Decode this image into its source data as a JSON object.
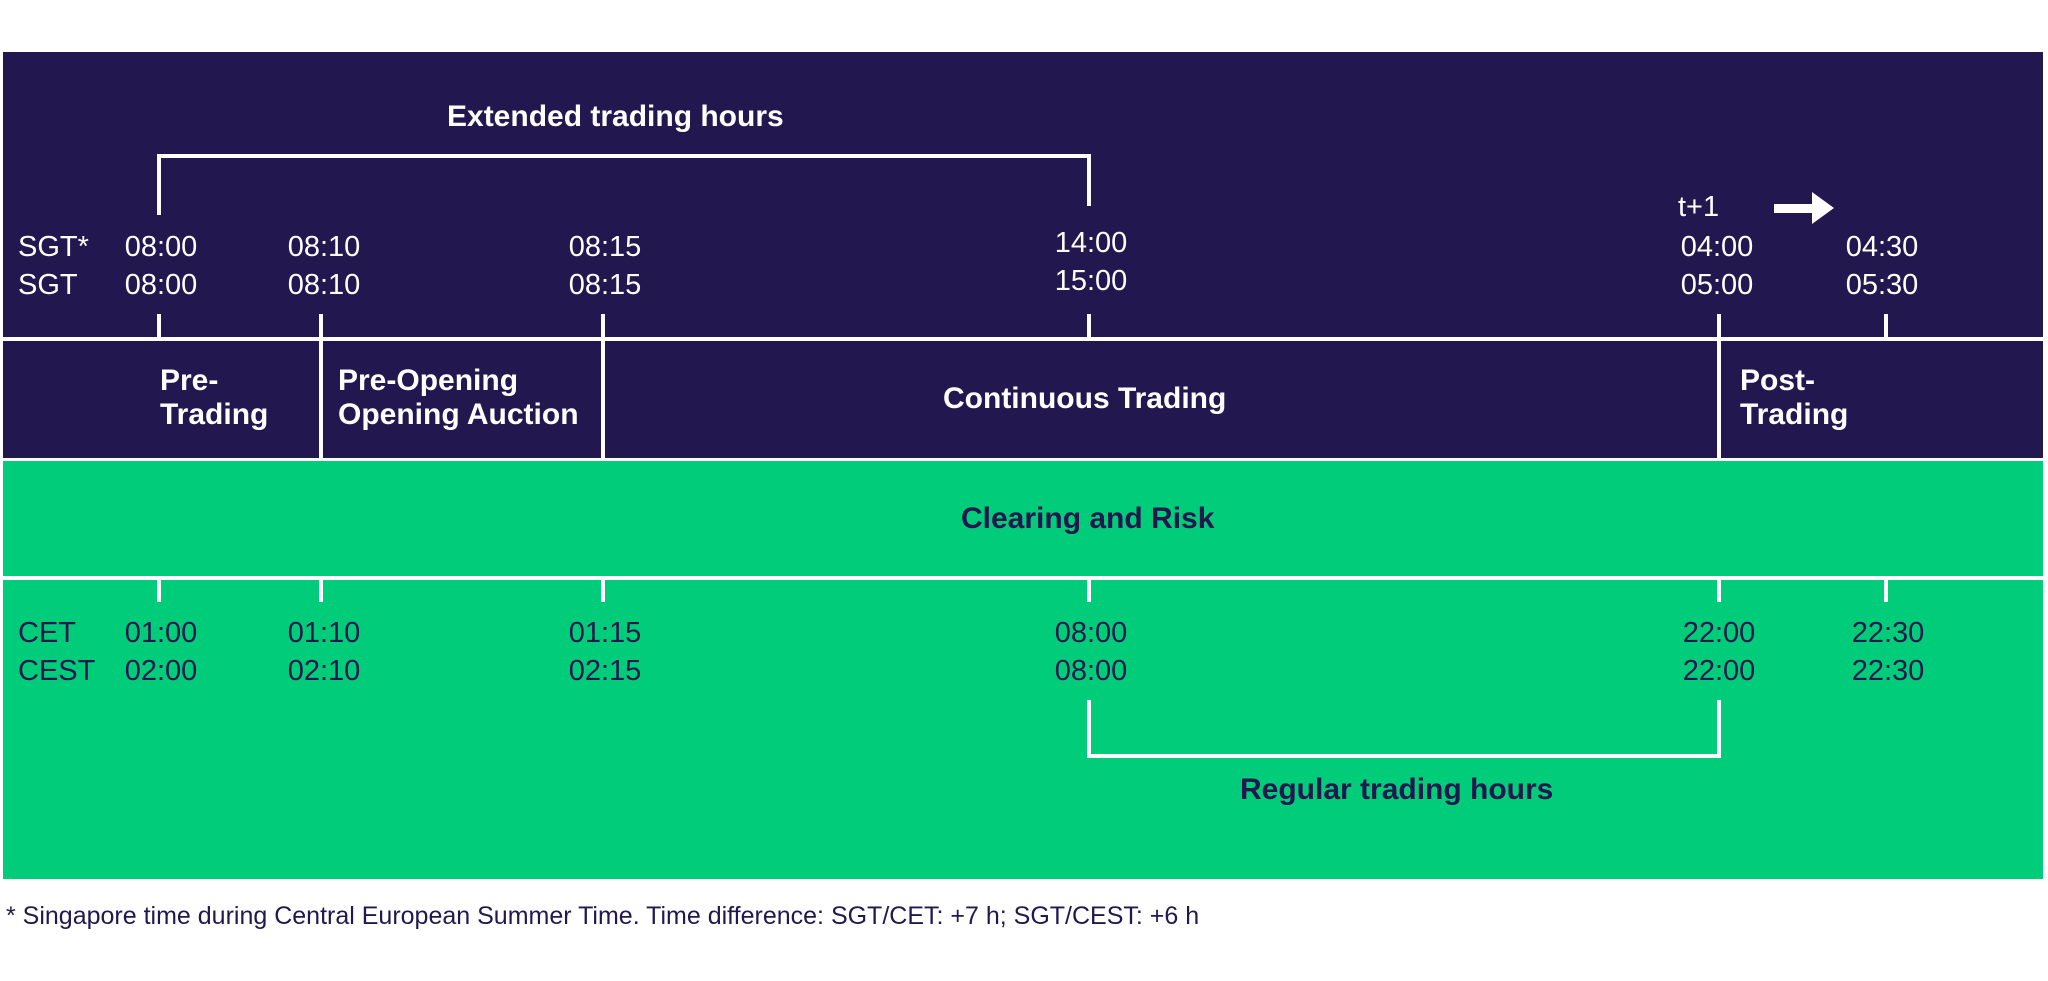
{
  "extended_hours_label": "Extended trading hours",
  "regular_hours_label": "Regular trading hours",
  "next_day_label": "t+1",
  "top_timezones": [
    "SGT*",
    "SGT"
  ],
  "bottom_timezones": [
    "CET",
    "CEST"
  ],
  "top_times": [
    {
      "a": "08:00",
      "b": "08:00"
    },
    {
      "a": "08:10",
      "b": "08:10"
    },
    {
      "a": "08:15",
      "b": "08:15"
    },
    {
      "a": "14:00",
      "b": "15:00"
    },
    {
      "a": "04:00",
      "b": "05:00"
    },
    {
      "a": "04:30",
      "b": "05:30"
    }
  ],
  "bottom_times": [
    {
      "a": "01:00",
      "b": "02:00"
    },
    {
      "a": "01:10",
      "b": "02:10"
    },
    {
      "a": "01:15",
      "b": "02:15"
    },
    {
      "a": "08:00",
      "b": "08:00"
    },
    {
      "a": "22:00",
      "b": "22:00"
    },
    {
      "a": "22:30",
      "b": "22:30"
    }
  ],
  "phases": {
    "pre_trading": [
      "Pre-",
      "Trading"
    ],
    "pre_opening": [
      "Pre-Opening",
      "Opening Auction"
    ],
    "continuous": "Continuous Trading",
    "post_trading": [
      "Post-",
      "Trading"
    ]
  },
  "clearing_label": "Clearing and Risk",
  "footnote": "* Singapore time during Central European Summer Time. Time difference: SGT/CET: +7 h; SGT/CEST: +6 h",
  "colors": {
    "top_panel": "#22184f",
    "bottom_panel": "#00cc7a",
    "lines": "#ffffff"
  }
}
